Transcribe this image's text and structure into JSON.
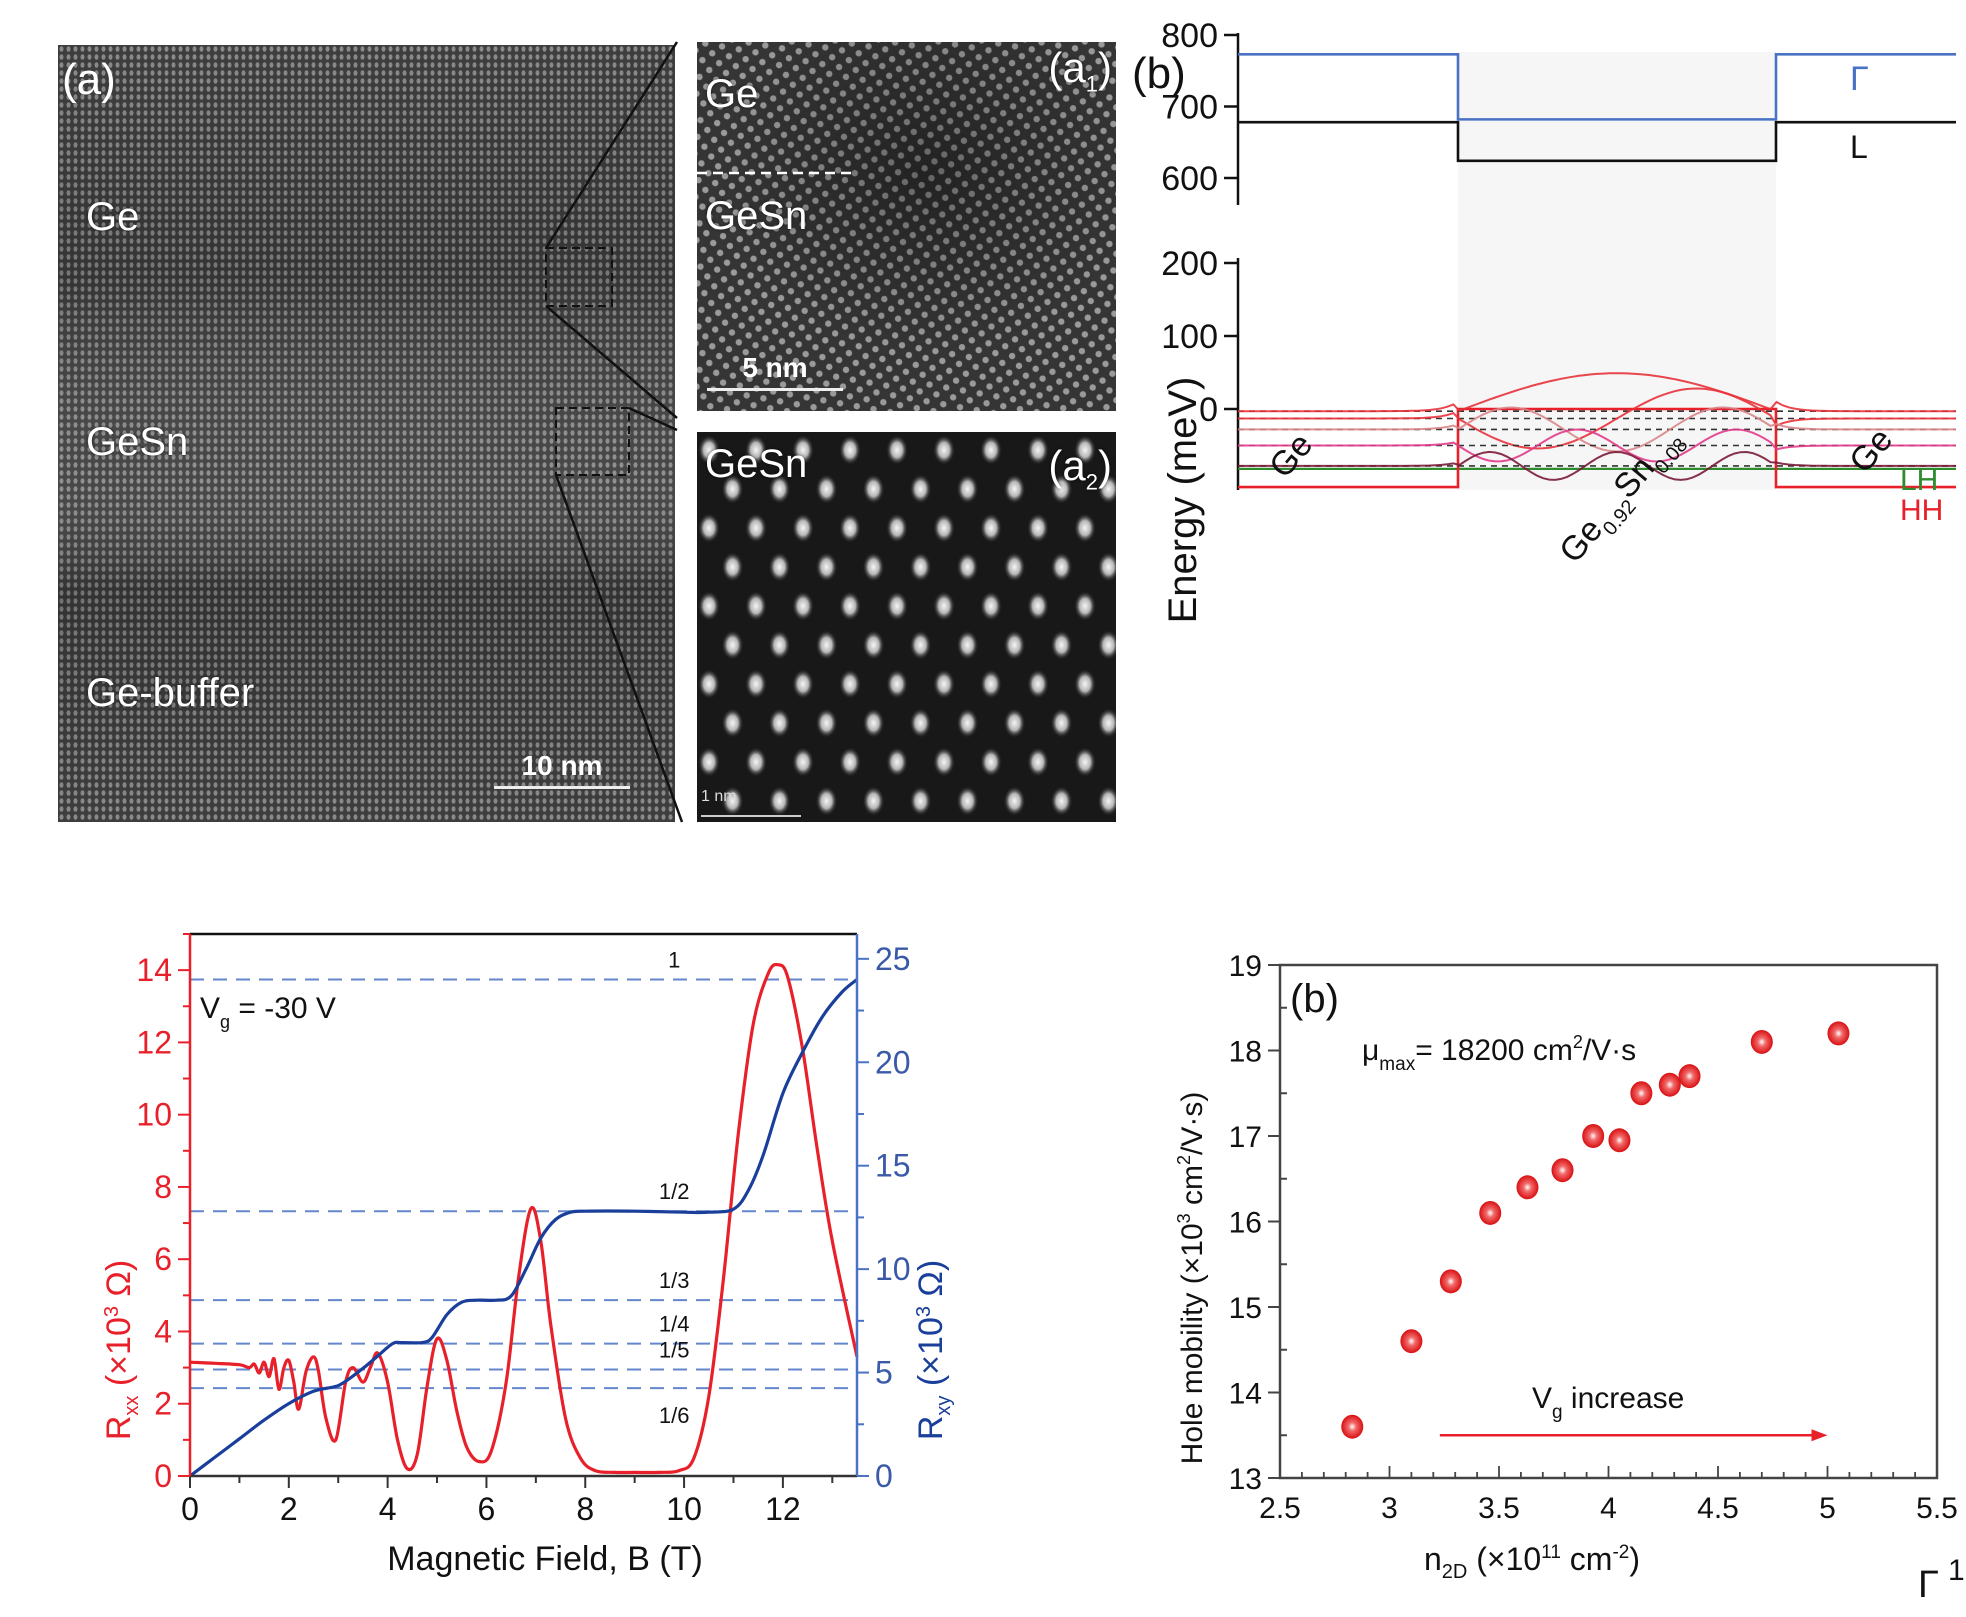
{
  "tem": {
    "main": {
      "panel_label": "(a)",
      "layers": [
        "Ge",
        "GeSn",
        "Ge-buffer"
      ],
      "scalebar": "10 nm"
    },
    "inset1": {
      "panel_label": "(a",
      "panel_sub": "1",
      "panel_close": ")",
      "top_label": "Ge",
      "bottom_label": "GeSn",
      "scalebar": "5 nm"
    },
    "inset2": {
      "panel_label": "(a",
      "panel_sub": "2",
      "panel_close": ")",
      "label": "GeSn",
      "scalebar": "1 nm"
    }
  },
  "chart_data": [
    {
      "id": "band-diagram",
      "type": "line",
      "panel_label": "(b)",
      "ylabel": "Energy (meV)",
      "y_upper": {
        "ylim": [
          570,
          800
        ],
        "ticks": [
          600,
          700,
          800
        ]
      },
      "y_lower": {
        "ylim": [
          -115,
          205
        ],
        "ticks": [
          0,
          100,
          200
        ]
      },
      "regions": [
        {
          "name": "Ge",
          "x": [
            0,
            0.25
          ]
        },
        {
          "name": "Ge0.92Sn0.08",
          "x": [
            0.25,
            0.75
          ]
        },
        {
          "name": "Ge",
          "x": [
            0.75,
            1.0
          ]
        }
      ],
      "region_labels": {
        "left": "Ge",
        "well_main": "Ge",
        "well_sub1": "0.92",
        "well_mid": "Sn",
        "well_sub2": "0.08",
        "right": "Ge"
      },
      "series": [
        {
          "name": "Γ",
          "color": "#4a72c4",
          "barrier": 773,
          "well": 682
        },
        {
          "name": "L",
          "color": "#111111",
          "barrier": 678,
          "well": 624
        },
        {
          "name": "LH",
          "color": "#2e8b2e",
          "barrier": -82,
          "well": -82
        },
        {
          "name": "HH",
          "color": "#e8202a",
          "barrier": -107,
          "well": 0
        }
      ],
      "subband_levels": [
        -3,
        -13,
        -28,
        -50,
        -78
      ],
      "subband_colors": [
        "#e8323a",
        "#e8323a",
        "#d9868a",
        "#e23a8a",
        "#7a1b3a"
      ],
      "band_labels": {
        "gamma": "Γ",
        "L": "L",
        "LH": "LH",
        "HH": "HH"
      }
    },
    {
      "id": "quantum-hall",
      "type": "line",
      "annotation": "V",
      "annotation_sub": "g",
      "annotation_rest": " = -30 V",
      "xlabel": "Magnetic Field, B (T)",
      "ylabel_left": {
        "main": "R",
        "sub": "xx",
        "rest": " (×10",
        "sup": "3",
        "end": " Ω)"
      },
      "ylabel_right": {
        "main": "R",
        "sub": "xy",
        "rest": " (×10",
        "sup": "3",
        "end": " Ω)"
      },
      "xlim": [
        0,
        13.5
      ],
      "ylim_left": [
        0,
        15
      ],
      "ylim_right": [
        0,
        26.2
      ],
      "xticks": [
        0,
        2,
        4,
        6,
        8,
        10,
        12
      ],
      "yticks_left": [
        0,
        2,
        4,
        6,
        8,
        10,
        12,
        14
      ],
      "yticks_right": [
        0,
        5,
        10,
        15,
        20,
        25
      ],
      "colors": {
        "rxx": "#e8202a",
        "rxy": "#1a3f9a",
        "plateau": "#4a72c4"
      },
      "plateaus": [
        {
          "label": "1",
          "rxy": 24.0
        },
        {
          "label": "1/2",
          "rxy": 12.8
        },
        {
          "label": "1/3",
          "rxy": 8.5
        },
        {
          "label": "1/4",
          "rxy": 6.4
        },
        {
          "label": "1/5",
          "rxy": 5.15
        },
        {
          "label": "1/6",
          "rxy": 4.25
        }
      ],
      "series": [
        {
          "name": "Rxx",
          "axis": "left",
          "x": [
            0,
            0.5,
            1.0,
            1.2,
            1.3,
            1.4,
            1.5,
            1.6,
            1.7,
            1.8,
            1.9,
            2.0,
            2.1,
            2.2,
            2.35,
            2.5,
            2.6,
            2.75,
            2.95,
            3.15,
            3.3,
            3.5,
            3.65,
            3.8,
            4.0,
            4.2,
            4.4,
            4.6,
            4.8,
            5.0,
            5.2,
            5.4,
            5.6,
            5.85,
            6.1,
            6.4,
            6.65,
            6.9,
            7.1,
            7.3,
            7.6,
            7.9,
            8.2,
            8.6,
            9.0,
            9.5,
            9.9,
            10.2,
            10.5,
            10.8,
            11.1,
            11.4,
            11.7,
            11.9,
            12.1,
            12.4,
            12.7,
            13.0,
            13.5
          ],
          "y": [
            3.15,
            3.12,
            3.08,
            3.0,
            3.1,
            2.85,
            3.15,
            2.75,
            3.25,
            2.4,
            3.0,
            3.2,
            2.6,
            1.85,
            2.9,
            3.3,
            2.9,
            1.6,
            1.0,
            2.6,
            3.0,
            2.6,
            3.0,
            3.4,
            2.6,
            1.0,
            0.2,
            0.6,
            2.5,
            3.8,
            3.2,
            1.8,
            0.8,
            0.4,
            0.7,
            2.6,
            5.5,
            7.4,
            6.5,
            4.2,
            1.6,
            0.5,
            0.15,
            0.1,
            0.1,
            0.1,
            0.15,
            0.5,
            2.2,
            5.5,
            9.5,
            12.5,
            13.9,
            14.15,
            13.8,
            11.8,
            9.0,
            6.5,
            3.3
          ]
        },
        {
          "name": "Rxy",
          "axis": "right",
          "x": [
            0,
            0.5,
            1.0,
            1.5,
            2.0,
            2.5,
            2.9,
            3.1,
            3.5,
            3.8,
            4.1,
            4.3,
            4.7,
            4.9,
            5.2,
            5.5,
            5.8,
            6.2,
            6.5,
            6.8,
            7.1,
            7.4,
            7.7,
            8.0,
            9.0,
            10.0,
            10.5,
            11.0,
            11.3,
            11.6,
            12.0,
            12.4,
            12.8,
            13.2,
            13.5
          ],
          "y": [
            0,
            0.9,
            1.8,
            2.7,
            3.5,
            4.1,
            4.3,
            4.5,
            5.2,
            5.8,
            6.4,
            6.45,
            6.45,
            6.7,
            7.8,
            8.4,
            8.5,
            8.5,
            8.7,
            10.0,
            11.5,
            12.4,
            12.75,
            12.8,
            12.8,
            12.75,
            12.75,
            12.9,
            13.8,
            15.5,
            18.5,
            20.5,
            22.2,
            23.4,
            24.0
          ]
        }
      ]
    },
    {
      "id": "mobility",
      "type": "scatter",
      "panel_label": "(b)",
      "annotation": "μ",
      "annotation_sub": "max",
      "annotation_rest": "= 18200 cm",
      "annotation_sup": "2",
      "annotation_end": "/V·s",
      "arrow_label_main": "V",
      "arrow_label_sub": "g",
      "arrow_label_rest": " increase",
      "xlabel": {
        "main": "n",
        "sub": "2D",
        "rest": " (×10",
        "sup": "11",
        "end": " cm",
        "sup2": "-2",
        "close": ")"
      },
      "ylabel": {
        "main": "Hole mobility (×10",
        "sup": "3",
        "rest": " cm",
        "sup2": "2",
        "end": "/V·s)"
      },
      "xlim": [
        2.5,
        5.5
      ],
      "ylim": [
        13,
        19
      ],
      "xticks": [
        2.5,
        3,
        3.5,
        4,
        4.5,
        5,
        5.5
      ],
      "xtick_labels": [
        "2.5",
        "3",
        "3.5",
        "4",
        "4.5",
        "5",
        "5.5"
      ],
      "yticks": [
        13,
        14,
        15,
        16,
        17,
        18,
        19
      ],
      "arrow": {
        "from": [
          3.23,
          13.5
        ],
        "to": [
          5.0,
          13.5
        ],
        "color": "#e8202a"
      },
      "marker_color": "#e8202a",
      "x": [
        2.83,
        3.1,
        3.28,
        3.46,
        3.63,
        3.79,
        3.93,
        4.05,
        4.15,
        4.28,
        4.37,
        4.7,
        5.05
      ],
      "y": [
        13.6,
        14.6,
        15.3,
        16.1,
        16.4,
        16.6,
        17.0,
        16.95,
        17.5,
        17.6,
        17.7,
        18.1,
        18.2
      ]
    }
  ],
  "footer": {
    "corner_glyph": "Γ",
    "corner_number": "1"
  }
}
